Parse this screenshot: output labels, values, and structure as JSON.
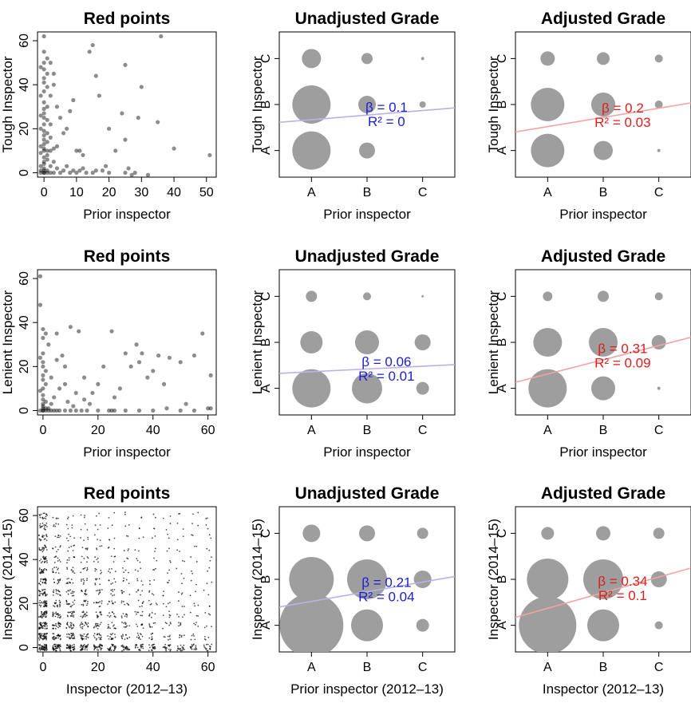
{
  "figure": {
    "colors": {
      "point": "#000000",
      "bubble": "#9e9e9e",
      "unadjusted_line": "#b7b3ea",
      "unadjusted_text": "#1d1dd6",
      "adjusted_line": "#f2a3a3",
      "adjusted_text": "#e11d1d"
    }
  },
  "chart_data": [
    {
      "id": "r0c0",
      "type": "scatter",
      "title": "Red points",
      "xlabel": "Prior inspector",
      "ylabel": "Tough Inspector",
      "xlim": [
        -2,
        53
      ],
      "ylim": [
        -2,
        64
      ],
      "xticks": [
        "0",
        "10",
        "20",
        "30",
        "40",
        "50"
      ],
      "yticks": [
        "0",
        "20",
        "40",
        "60"
      ],
      "points": [
        [
          0,
          0
        ],
        [
          0,
          0
        ],
        [
          1,
          0
        ],
        [
          -1,
          0
        ],
        [
          0,
          1
        ],
        [
          2,
          0
        ],
        [
          0,
          2
        ],
        [
          1,
          1
        ],
        [
          -1,
          1
        ],
        [
          3,
          0
        ],
        [
          5,
          0
        ],
        [
          6,
          1
        ],
        [
          8,
          0
        ],
        [
          10,
          0
        ],
        [
          11,
          1
        ],
        [
          13,
          0
        ],
        [
          15,
          0
        ],
        [
          18,
          1
        ],
        [
          20,
          0
        ],
        [
          25,
          0
        ],
        [
          0,
          5
        ],
        [
          0,
          7
        ],
        [
          1,
          8
        ],
        [
          -1,
          9
        ],
        [
          0,
          10
        ],
        [
          1,
          10
        ],
        [
          2,
          10
        ],
        [
          0,
          11
        ],
        [
          -1,
          12
        ],
        [
          0,
          13
        ],
        [
          1,
          14
        ],
        [
          0,
          15
        ],
        [
          0,
          17
        ],
        [
          1,
          18
        ],
        [
          0,
          19
        ],
        [
          -1,
          20
        ],
        [
          0,
          22
        ],
        [
          1,
          24
        ],
        [
          0,
          25
        ],
        [
          0,
          27
        ],
        [
          1,
          30
        ],
        [
          0,
          32
        ],
        [
          -1,
          35
        ],
        [
          0,
          37
        ],
        [
          1,
          39
        ],
        [
          0,
          41
        ],
        [
          0,
          43
        ],
        [
          1,
          45
        ],
        [
          0,
          47
        ],
        [
          0,
          50
        ],
        [
          -1,
          48
        ],
        [
          0,
          55
        ],
        [
          0,
          62
        ],
        [
          2,
          50
        ],
        [
          3,
          40
        ],
        [
          4,
          30
        ],
        [
          5,
          25
        ],
        [
          7,
          20
        ],
        [
          10,
          10
        ],
        [
          11,
          10
        ],
        [
          12,
          8
        ],
        [
          14,
          55
        ],
        [
          15,
          58
        ],
        [
          16,
          44
        ],
        [
          17,
          35
        ],
        [
          20,
          20
        ],
        [
          22,
          10
        ],
        [
          24,
          27
        ],
        [
          25,
          15
        ],
        [
          25,
          49
        ],
        [
          26,
          2
        ],
        [
          27,
          -1
        ],
        [
          28,
          0
        ],
        [
          29,
          25
        ],
        [
          30,
          39
        ],
        [
          32,
          -1
        ],
        [
          35,
          23
        ],
        [
          36,
          62
        ],
        [
          40,
          11
        ],
        [
          51,
          8
        ],
        [
          3,
          5
        ],
        [
          4,
          12
        ],
        [
          6,
          18
        ],
        [
          8,
          28
        ],
        [
          9,
          33
        ],
        [
          2,
          35
        ],
        [
          3,
          45
        ],
        [
          1,
          52
        ],
        [
          -1,
          3
        ],
        [
          0,
          4
        ],
        [
          1,
          6
        ],
        [
          2,
          3
        ],
        [
          4,
          2
        ],
        [
          7,
          3
        ],
        [
          9,
          1
        ],
        [
          12,
          2
        ],
        [
          16,
          1
        ],
        [
          19,
          3
        ],
        [
          2,
          16
        ],
        [
          -1,
          26
        ],
        [
          0,
          29
        ],
        [
          2,
          22
        ],
        [
          3,
          11
        ]
      ]
    },
    {
      "id": "r0c1",
      "type": "bubble",
      "title": "Unadjusted Grade",
      "xlabel": "Prior inspector",
      "ylabel": "Tough Inspector",
      "categories": [
        "A",
        "B",
        "C"
      ],
      "cells": [
        [
          1,
          1,
          24
        ],
        [
          2,
          1,
          10
        ],
        [
          1,
          2,
          24
        ],
        [
          2,
          2,
          11
        ],
        [
          3,
          2,
          4
        ],
        [
          1,
          3,
          12
        ],
        [
          2,
          3,
          7
        ],
        [
          3,
          3,
          2
        ]
      ],
      "fit": {
        "intercept": 1.57,
        "slope": 0.1
      },
      "annotation": {
        "beta": "β = 0.1",
        "r2": "R² = 0"
      },
      "line_color": "#b7b3ea",
      "text_color": "#1d1dd6"
    },
    {
      "id": "r0c2",
      "type": "bubble",
      "title": "Adjusted Grade",
      "xlabel": "Prior inspector",
      "ylabel": "Tough Inspector",
      "categories": [
        "A",
        "B",
        "C"
      ],
      "cells": [
        [
          1,
          1,
          21
        ],
        [
          2,
          1,
          12
        ],
        [
          3,
          1,
          2
        ],
        [
          1,
          2,
          21
        ],
        [
          2,
          2,
          15
        ],
        [
          3,
          2,
          5
        ],
        [
          1,
          3,
          9
        ],
        [
          2,
          3,
          8
        ],
        [
          3,
          3,
          5
        ]
      ],
      "fit": {
        "intercept": 1.32,
        "slope": 0.2
      },
      "annotation": {
        "beta": "β = 0.2",
        "r2": "R² = 0.03"
      },
      "line_color": "#f2a3a3",
      "text_color": "#e11d1d"
    },
    {
      "id": "r1c0",
      "type": "scatter",
      "title": "Red points",
      "xlabel": "Prior inspector",
      "ylabel": "Lenient Inspector",
      "xlim": [
        -2,
        63
      ],
      "ylim": [
        -2,
        64
      ],
      "xticks": [
        "0",
        "20",
        "40",
        "60"
      ],
      "yticks": [
        "0",
        "20",
        "40",
        "60"
      ],
      "points": [
        [
          0,
          0
        ],
        [
          0,
          0
        ],
        [
          1,
          0
        ],
        [
          -1,
          0
        ],
        [
          2,
          0
        ],
        [
          3,
          0
        ],
        [
          4,
          0
        ],
        [
          5,
          0
        ],
        [
          6,
          0
        ],
        [
          8,
          0
        ],
        [
          10,
          0
        ],
        [
          12,
          0
        ],
        [
          14,
          0
        ],
        [
          16,
          0
        ],
        [
          20,
          0
        ],
        [
          24,
          0
        ],
        [
          25,
          0
        ],
        [
          26,
          0
        ],
        [
          30,
          0
        ],
        [
          35,
          0
        ],
        [
          40,
          0
        ],
        [
          45,
          1
        ],
        [
          50,
          0
        ],
        [
          55,
          0
        ],
        [
          60,
          1
        ],
        [
          0,
          1
        ],
        [
          1,
          1
        ],
        [
          2,
          1
        ],
        [
          0,
          2
        ],
        [
          0,
          3
        ],
        [
          1,
          4
        ],
        [
          0,
          5
        ],
        [
          0,
          7
        ],
        [
          -1,
          9
        ],
        [
          0,
          10
        ],
        [
          1,
          12
        ],
        [
          0,
          14
        ],
        [
          0,
          16
        ],
        [
          1,
          18
        ],
        [
          0,
          20
        ],
        [
          0,
          22
        ],
        [
          -1,
          24
        ],
        [
          0,
          26
        ],
        [
          0,
          33
        ],
        [
          1,
          35
        ],
        [
          0,
          37
        ],
        [
          -1,
          48
        ],
        [
          -1,
          61
        ],
        [
          5,
          35
        ],
        [
          5,
          23
        ],
        [
          8,
          20
        ],
        [
          8,
          12
        ],
        [
          10,
          38
        ],
        [
          13,
          36
        ],
        [
          15,
          15
        ],
        [
          15,
          5
        ],
        [
          18,
          8
        ],
        [
          20,
          12
        ],
        [
          22,
          20
        ],
        [
          25,
          36
        ],
        [
          26,
          6
        ],
        [
          30,
          26
        ],
        [
          32,
          20
        ],
        [
          34,
          30
        ],
        [
          35,
          22
        ],
        [
          36,
          26
        ],
        [
          38,
          15
        ],
        [
          40,
          18
        ],
        [
          42,
          25
        ],
        [
          46,
          24
        ],
        [
          50,
          22
        ],
        [
          52,
          3
        ],
        [
          55,
          25
        ],
        [
          58,
          35
        ],
        [
          61,
          16
        ],
        [
          61,
          1
        ],
        [
          3,
          3
        ],
        [
          4,
          6
        ],
        [
          6,
          10
        ],
        [
          9,
          4
        ],
        [
          11,
          2
        ],
        [
          2,
          30
        ],
        [
          3,
          15
        ],
        [
          7,
          25
        ],
        [
          12,
          8
        ],
        [
          17,
          3
        ],
        [
          28,
          10
        ],
        [
          44,
          12
        ]
      ]
    },
    {
      "id": "r1c1",
      "type": "bubble",
      "title": "Unadjusted Grade",
      "xlabel": "Prior inspector",
      "ylabel": "Lenient Inspector",
      "categories": [
        "A",
        "B",
        "C"
      ],
      "cells": [
        [
          1,
          1,
          24
        ],
        [
          2,
          1,
          19
        ],
        [
          3,
          1,
          8
        ],
        [
          1,
          2,
          14
        ],
        [
          2,
          2,
          15
        ],
        [
          3,
          2,
          10
        ],
        [
          1,
          3,
          7
        ],
        [
          2,
          3,
          5
        ],
        [
          3,
          3,
          1.5
        ]
      ],
      "fit": {
        "intercept": 1.3,
        "slope": 0.06
      },
      "annotation": {
        "beta": "β = 0.06",
        "r2": "R² = 0.01"
      },
      "line_color": "#b7b3ea",
      "text_color": "#1d1dd6"
    },
    {
      "id": "r1c2",
      "type": "bubble",
      "title": "Adjusted Grade",
      "xlabel": "Prior inspector",
      "ylabel": "Lenient Inspector",
      "categories": [
        "A",
        "B",
        "C"
      ],
      "cells": [
        [
          1,
          1,
          24
        ],
        [
          2,
          1,
          15
        ],
        [
          3,
          1,
          2
        ],
        [
          1,
          2,
          18
        ],
        [
          2,
          2,
          18
        ],
        [
          3,
          2,
          9
        ],
        [
          1,
          3,
          6
        ],
        [
          2,
          3,
          7
        ],
        [
          3,
          3,
          5
        ]
      ],
      "fit": {
        "intercept": 1.0,
        "slope": 0.31
      },
      "annotation": {
        "beta": "β = 0.31",
        "r2": "R² = 0.09"
      },
      "line_color": "#f2a3a3",
      "text_color": "#e11d1d"
    },
    {
      "id": "r2c0",
      "type": "scatter",
      "title": "Red points",
      "xlabel": "Inspector (2012–13)",
      "ylabel": "Inspector (2014–15)",
      "xlim": [
        -2,
        63
      ],
      "ylim": [
        -2,
        64
      ],
      "xticks": [
        "0",
        "20",
        "40",
        "60"
      ],
      "yticks": [
        "0",
        "20",
        "40",
        "60"
      ],
      "grid_density": "dense",
      "points": []
    },
    {
      "id": "r2c1",
      "type": "bubble",
      "title": "Unadjusted Grade",
      "xlabel": "Prior inspector (2012–13)",
      "ylabel": "Inspector (2014–15)",
      "categories": [
        "A",
        "B",
        "C"
      ],
      "cells": [
        [
          1,
          1,
          40
        ],
        [
          2,
          1,
          20
        ],
        [
          3,
          1,
          8
        ],
        [
          1,
          2,
          28
        ],
        [
          2,
          2,
          25
        ],
        [
          3,
          2,
          11
        ],
        [
          1,
          3,
          11
        ],
        [
          2,
          3,
          10
        ],
        [
          3,
          3,
          7
        ]
      ],
      "fit": {
        "intercept": 1.31,
        "slope": 0.21
      },
      "annotation": {
        "beta": "β = 0.21",
        "r2": "R² = 0.04"
      },
      "line_color": "#b7b3ea",
      "text_color": "#1d1dd6"
    },
    {
      "id": "r2c2",
      "type": "bubble",
      "title": "Adjusted Grade",
      "xlabel": "Inspector (2012–13)",
      "ylabel": "Inspector (2014–15)",
      "categories": [
        "A",
        "B",
        "C"
      ],
      "cells": [
        [
          1,
          1,
          36
        ],
        [
          2,
          1,
          20
        ],
        [
          3,
          1,
          5
        ],
        [
          1,
          2,
          26
        ],
        [
          2,
          2,
          25
        ],
        [
          3,
          2,
          10
        ],
        [
          1,
          3,
          8
        ],
        [
          2,
          3,
          9
        ],
        [
          3,
          3,
          7
        ]
      ],
      "fit": {
        "intercept": 1.03,
        "slope": 0.34
      },
      "annotation": {
        "beta": "β = 0.34",
        "r2": "R² = 0.1"
      },
      "line_color": "#f2a3a3",
      "text_color": "#e11d1d"
    }
  ]
}
